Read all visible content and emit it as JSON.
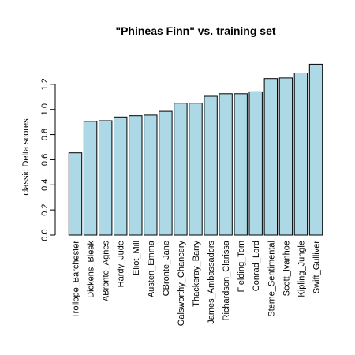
{
  "chart_data": {
    "type": "bar",
    "title": "\"Phineas Finn\" vs. training set",
    "xlabel": "",
    "ylabel": "classic Delta scores",
    "ylim": [
      0,
      1.4
    ],
    "yticks": [
      0.0,
      0.2,
      0.4,
      0.6,
      0.8,
      1.0,
      1.2
    ],
    "ytick_labels": [
      "0.0",
      "0.2",
      "0.4",
      "0.6",
      "0.8",
      "1.0",
      "1.2"
    ],
    "bar_color": "#add8e6",
    "grid": false,
    "categories": [
      "Trollope_Barchester",
      "Dickens_Bleak",
      "ABronte_Agnes",
      "Hardy_Jude",
      "Eliot_Mill",
      "Austen_Emma",
      "CBronte_Jane",
      "Galsworthy_Chancery",
      "Thackeray_Barry",
      "James_Ambassadors",
      "Richardson_Clarissa",
      "Fielding_Tom",
      "Conrad_Lord",
      "Sterne_Sentimental",
      "Scott_Ivanhoe",
      "Kipling_Jungle",
      "Swift_Gulliver"
    ],
    "values": [
      0.655,
      0.905,
      0.91,
      0.94,
      0.95,
      0.955,
      0.985,
      1.05,
      1.05,
      1.105,
      1.125,
      1.125,
      1.14,
      1.245,
      1.25,
      1.29,
      1.36
    ]
  }
}
